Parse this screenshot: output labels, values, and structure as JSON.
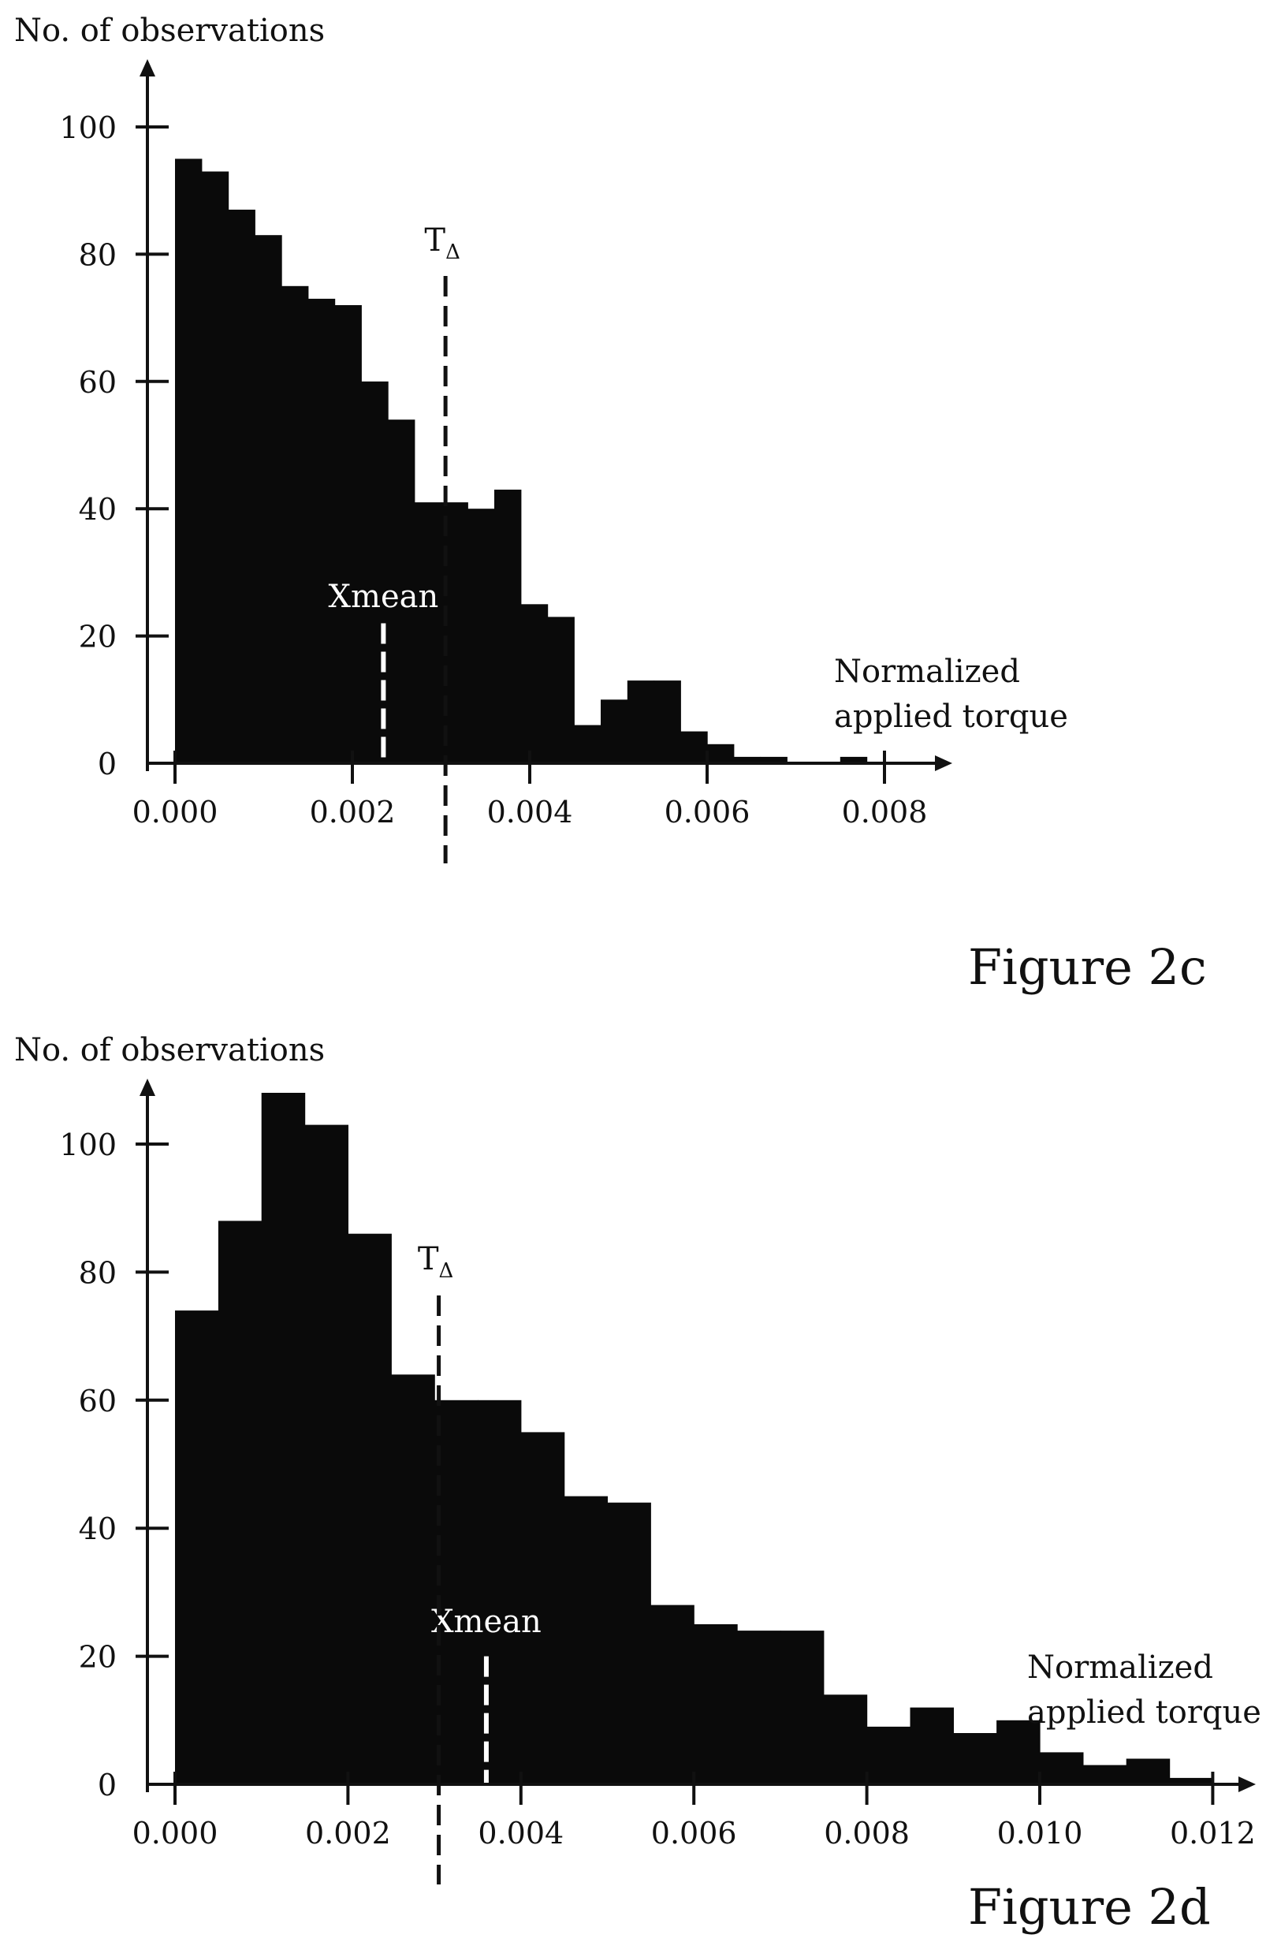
{
  "chart_data": [
    {
      "type": "bar",
      "figure_label": "Figure 2c",
      "ylabel": "No. of observations",
      "xlabel": [
        "Normalized",
        "applied torque"
      ],
      "ylim": [
        0,
        100
      ],
      "xlim": [
        0.0,
        0.008
      ],
      "y_ticks": [
        0,
        20,
        40,
        60,
        80,
        100
      ],
      "x_ticks": [
        0.0,
        0.002,
        0.004,
        0.006,
        0.008
      ],
      "x_tick_labels": [
        "0.000",
        "0.002",
        "0.004",
        "0.006",
        "0.008"
      ],
      "bin_width": 0.0003,
      "bin_starts": [
        0.0,
        0.0003,
        0.0006,
        0.0009,
        0.0012,
        0.0015,
        0.0018,
        0.0021,
        0.0024,
        0.0027,
        0.003,
        0.0033,
        0.0036,
        0.0039,
        0.0042,
        0.0045,
        0.0048,
        0.0051,
        0.0054,
        0.0057,
        0.006,
        0.0063,
        0.0066,
        0.0069,
        0.0072,
        0.0075,
        0.0078
      ],
      "values": [
        95,
        93,
        87,
        83,
        75,
        73,
        72,
        60,
        54,
        41,
        41,
        40,
        43,
        25,
        23,
        6,
        10,
        13,
        13,
        5,
        3,
        1,
        1,
        0,
        0,
        1,
        0
      ],
      "markers": [
        {
          "label": "Xmean",
          "x": 0.00235,
          "y": 22,
          "style": "dashed white"
        },
        {
          "label": "TΔ",
          "label_main": "T",
          "label_sub": "Δ",
          "x": 0.00305,
          "style": "dashed black"
        }
      ],
      "grid": false,
      "legend": "none"
    },
    {
      "type": "bar",
      "figure_label": "Figure 2d",
      "ylabel": "No. of observations",
      "xlabel": [
        "Normalized",
        "applied torque"
      ],
      "ylim": [
        0,
        100
      ],
      "xlim": [
        0.0,
        0.012
      ],
      "y_ticks": [
        0,
        20,
        40,
        60,
        80,
        100
      ],
      "x_ticks": [
        0.0,
        0.002,
        0.004,
        0.006,
        0.008,
        0.01,
        0.012
      ],
      "x_tick_labels": [
        "0.000",
        "0.002",
        "0.004",
        "0.006",
        "0.008",
        "0.010",
        "0.012"
      ],
      "bin_width": 0.0005,
      "bin_starts": [
        0.0,
        0.0005,
        0.001,
        0.0015,
        0.002,
        0.0025,
        0.003,
        0.0035,
        0.004,
        0.0045,
        0.005,
        0.0055,
        0.006,
        0.0065,
        0.007,
        0.0075,
        0.008,
        0.0085,
        0.009,
        0.0095,
        0.01,
        0.0105,
        0.011,
        0.0115
      ],
      "values": [
        74,
        88,
        108,
        103,
        86,
        64,
        60,
        60,
        55,
        45,
        44,
        28,
        25,
        24,
        24,
        14,
        9,
        12,
        8,
        10,
        5,
        3,
        4,
        1
      ],
      "markers": [
        {
          "label": "Xmean",
          "x": 0.0036,
          "y": 20,
          "style": "dashed white"
        },
        {
          "label": "TΔ",
          "label_main": "T",
          "label_sub": "Δ",
          "x": 0.00305,
          "style": "dashed black"
        }
      ],
      "grid": false,
      "legend": "none"
    }
  ]
}
